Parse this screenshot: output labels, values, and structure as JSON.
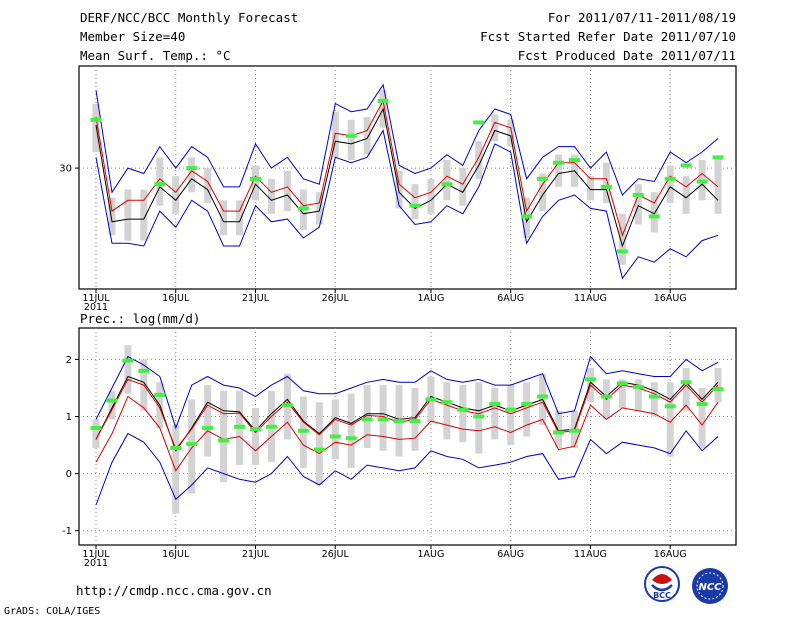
{
  "header": {
    "title": "DERF/NCC/BCC Monthly Forecast",
    "member": "Member Size=40",
    "variable": "Mean Surf. Temp.: °C",
    "period": "For 2011/07/11-2011/08/19",
    "started": "Fcst Started Refer Date 2011/07/10",
    "produced": "Fcst Produced Date 2011/07/11"
  },
  "lower_label": "Prec.: log(mm/d)",
  "footer": {
    "url": "http://cmdp.ncc.cma.gov.cn",
    "credit": "GrADS: COLA/IGES",
    "logo_bcc": "BCC",
    "logo_ncc": "NCC"
  },
  "colors": {
    "ensemble_mean": "#000000",
    "median": "#dd0000",
    "envelope": "#0000cc",
    "spread_bar": "#d3d3d3",
    "observation": "#44ee44",
    "grid": "#888888"
  },
  "chart_data": [
    {
      "type": "line",
      "title": "Mean Surf. Temp.: °C",
      "x_ticks": [
        "11JUL",
        "16JUL",
        "21JUL",
        "26JUL",
        "1AUG",
        "6AUG",
        "11AUG",
        "16AUG"
      ],
      "x_tick_days": [
        0,
        5,
        10,
        15,
        21,
        26,
        31,
        36
      ],
      "x_sublabel": "2011",
      "y_ticks": [
        30
      ],
      "ylim": [
        25.5,
        33.8
      ],
      "days": [
        0,
        1,
        2,
        3,
        4,
        5,
        6,
        7,
        8,
        9,
        10,
        11,
        12,
        13,
        14,
        15,
        16,
        17,
        18,
        19,
        20,
        21,
        22,
        23,
        24,
        25,
        26,
        27,
        28,
        29,
        30,
        31,
        32,
        33,
        34,
        35,
        36,
        37,
        38,
        39
      ],
      "series": [
        {
          "name": "ensemble mean",
          "values": [
            31.6,
            28.0,
            28.1,
            28.1,
            29.3,
            28.8,
            29.6,
            29.2,
            28.0,
            28.0,
            29.4,
            28.8,
            29.0,
            28.3,
            28.4,
            31.0,
            30.9,
            31.1,
            32.2,
            29.1,
            28.5,
            28.8,
            29.4,
            29.1,
            30.1,
            31.4,
            31.2,
            28.0,
            29.0,
            29.8,
            29.9,
            29.2,
            29.2,
            27.1,
            28.6,
            28.3,
            29.3,
            28.9,
            29.4,
            28.8
          ]
        },
        {
          "name": "median",
          "values": [
            31.9,
            28.4,
            28.8,
            28.8,
            29.6,
            29.1,
            29.9,
            29.5,
            28.4,
            28.4,
            29.7,
            29.1,
            29.3,
            28.6,
            28.7,
            31.3,
            31.2,
            31.4,
            32.5,
            29.4,
            28.9,
            29.1,
            29.7,
            29.4,
            30.4,
            31.7,
            31.5,
            28.4,
            29.4,
            30.2,
            30.2,
            29.6,
            29.6,
            27.5,
            29.0,
            28.7,
            29.7,
            29.3,
            29.8,
            29.3
          ]
        },
        {
          "name": "upper envelope",
          "values": [
            32.9,
            29.1,
            30.0,
            29.8,
            30.8,
            30.0,
            30.8,
            30.4,
            29.3,
            29.3,
            30.9,
            30.0,
            30.4,
            29.6,
            29.4,
            32.4,
            32.1,
            32.2,
            33.1,
            30.1,
            29.8,
            30.0,
            30.5,
            30.1,
            31.4,
            32.2,
            32.0,
            29.6,
            30.4,
            30.8,
            30.8,
            30.0,
            30.6,
            29.0,
            29.6,
            29.5,
            30.6,
            30.2,
            30.6,
            31.1
          ]
        },
        {
          "name": "lower envelope",
          "values": [
            30.4,
            27.2,
            27.2,
            27.1,
            28.4,
            27.8,
            28.8,
            28.4,
            27.1,
            27.1,
            28.6,
            28.0,
            28.1,
            27.4,
            27.8,
            30.4,
            30.2,
            30.4,
            31.4,
            28.6,
            27.9,
            28.0,
            28.6,
            28.3,
            29.3,
            30.9,
            30.6,
            27.2,
            28.2,
            28.8,
            29.0,
            28.5,
            28.4,
            25.9,
            26.7,
            26.5,
            27.0,
            26.7,
            27.3,
            27.5
          ]
        }
      ],
      "spread_bars": {
        "low": [
          30.6,
          27.5,
          27.3,
          27.3,
          28.6,
          28.3,
          29.1,
          28.7,
          27.5,
          27.5,
          28.8,
          28.3,
          28.4,
          27.7,
          27.9,
          30.4,
          30.3,
          30.5,
          31.5,
          28.5,
          28.1,
          28.3,
          28.8,
          28.6,
          29.6,
          31.0,
          30.8,
          27.4,
          28.4,
          29.3,
          29.3,
          28.8,
          28.7,
          26.4,
          27.9,
          27.6,
          28.7,
          28.3,
          28.8,
          28.3
        ],
        "high": [
          32.4,
          28.9,
          29.2,
          29.2,
          30.4,
          29.7,
          30.4,
          30.0,
          28.8,
          28.8,
          30.1,
          29.6,
          29.9,
          29.2,
          29.1,
          32.1,
          31.8,
          31.9,
          32.9,
          29.9,
          29.4,
          29.6,
          30.3,
          30.0,
          31.0,
          32.0,
          31.8,
          28.9,
          29.8,
          30.5,
          30.5,
          29.7,
          30.2,
          28.3,
          29.4,
          29.1,
          30.1,
          29.7,
          30.3,
          30.4
        ]
      },
      "observations": [
        {
          "day": 0,
          "value": 31.8
        },
        {
          "day": 4,
          "value": 29.4
        },
        {
          "day": 6,
          "value": 30.0
        },
        {
          "day": 10,
          "value": 29.6
        },
        {
          "day": 13,
          "value": 28.5
        },
        {
          "day": 16,
          "value": 31.2
        },
        {
          "day": 18,
          "value": 32.5
        },
        {
          "day": 20,
          "value": 28.6
        },
        {
          "day": 22,
          "value": 29.4
        },
        {
          "day": 24,
          "value": 31.7
        },
        {
          "day": 27,
          "value": 28.2
        },
        {
          "day": 28,
          "value": 29.6
        },
        {
          "day": 29,
          "value": 30.2
        },
        {
          "day": 30,
          "value": 30.3
        },
        {
          "day": 32,
          "value": 29.3
        },
        {
          "day": 33,
          "value": 26.9
        },
        {
          "day": 34,
          "value": 29.0
        },
        {
          "day": 35,
          "value": 28.2
        },
        {
          "day": 36,
          "value": 29.6
        },
        {
          "day": 37,
          "value": 30.1
        },
        {
          "day": 38,
          "value": 29.5
        },
        {
          "day": 39,
          "value": 30.4
        }
      ]
    },
    {
      "type": "line",
      "title": "Prec.: log(mm/d)",
      "x_ticks": [
        "11JUL",
        "16JUL",
        "21JUL",
        "26JUL",
        "1AUG",
        "6AUG",
        "11AUG",
        "16AUG"
      ],
      "x_tick_days": [
        0,
        5,
        10,
        15,
        21,
        26,
        31,
        36
      ],
      "x_sublabel": "2011",
      "y_ticks": [
        -1,
        0,
        1,
        2
      ],
      "ylim": [
        -1.25,
        2.55
      ],
      "days": [
        0,
        1,
        2,
        3,
        4,
        5,
        6,
        7,
        8,
        9,
        10,
        11,
        12,
        13,
        14,
        15,
        16,
        17,
        18,
        19,
        20,
        21,
        22,
        23,
        24,
        25,
        26,
        27,
        28,
        29,
        30,
        31,
        32,
        33,
        34,
        35,
        36,
        37,
        38,
        39
      ],
      "series": [
        {
          "name": "ensemble mean",
          "values": [
            0.6,
            1.15,
            1.7,
            1.6,
            1.2,
            0.4,
            0.8,
            1.25,
            1.1,
            1.08,
            0.75,
            1.05,
            1.3,
            0.92,
            0.7,
            0.98,
            0.88,
            1.05,
            1.05,
            0.95,
            0.98,
            1.35,
            1.25,
            1.15,
            1.1,
            1.2,
            1.1,
            1.2,
            1.3,
            0.75,
            0.78,
            1.6,
            1.35,
            1.6,
            1.55,
            1.45,
            1.3,
            1.6,
            1.3,
            1.6
          ]
        },
        {
          "name": "median",
          "values": [
            0.6,
            1.12,
            1.65,
            1.55,
            1.15,
            0.43,
            0.78,
            1.2,
            1.05,
            1.06,
            0.72,
            1.0,
            1.25,
            0.9,
            0.68,
            0.95,
            0.85,
            1.02,
            1.0,
            0.9,
            0.95,
            1.3,
            1.2,
            1.1,
            1.05,
            1.15,
            1.05,
            1.15,
            1.25,
            0.72,
            0.75,
            1.55,
            1.3,
            1.55,
            1.5,
            1.4,
            1.25,
            1.55,
            1.25,
            1.55
          ]
        },
        {
          "name": "lower median",
          "values": [
            0.2,
            0.7,
            1.35,
            1.15,
            0.8,
            0.05,
            0.45,
            0.75,
            0.6,
            0.65,
            0.4,
            0.65,
            0.9,
            0.5,
            0.35,
            0.55,
            0.5,
            0.68,
            0.65,
            0.6,
            0.62,
            0.92,
            0.85,
            0.78,
            0.75,
            0.82,
            0.72,
            0.85,
            0.95,
            0.42,
            0.48,
            1.2,
            0.95,
            1.15,
            1.1,
            1.05,
            0.9,
            1.2,
            0.85,
            1.25
          ]
        },
        {
          "name": "upper envelope",
          "values": [
            0.95,
            1.5,
            2.05,
            1.9,
            1.7,
            0.8,
            1.55,
            1.7,
            1.55,
            1.5,
            1.35,
            1.55,
            1.7,
            1.45,
            1.4,
            1.4,
            1.5,
            1.6,
            1.65,
            1.6,
            1.6,
            1.8,
            1.65,
            1.6,
            1.65,
            1.55,
            1.55,
            1.65,
            1.75,
            1.05,
            1.1,
            2.05,
            1.75,
            1.8,
            1.75,
            1.7,
            1.7,
            2.0,
            1.8,
            1.95
          ]
        },
        {
          "name": "lower envelope",
          "values": [
            -0.55,
            0.2,
            0.7,
            0.55,
            0.2,
            -0.45,
            -0.2,
            0.1,
            0.0,
            -0.1,
            -0.15,
            0.0,
            0.3,
            -0.05,
            -0.2,
            0.05,
            -0.1,
            0.15,
            0.1,
            0.05,
            0.1,
            0.4,
            0.3,
            0.25,
            0.1,
            0.15,
            0.2,
            0.3,
            0.35,
            -0.1,
            -0.05,
            0.6,
            0.35,
            0.55,
            0.5,
            0.45,
            0.35,
            0.75,
            0.4,
            0.65
          ]
        }
      ],
      "spread_bars": {
        "low": [
          0.45,
          0.95,
          1.4,
          1.1,
          0.8,
          -0.7,
          -0.35,
          0.3,
          -0.15,
          0.15,
          0.15,
          0.2,
          0.6,
          0.1,
          -0.2,
          0.25,
          0.1,
          0.45,
          0.4,
          0.3,
          0.4,
          0.9,
          0.6,
          0.55,
          0.35,
          0.6,
          0.5,
          0.65,
          0.85,
          0.45,
          0.45,
          1.25,
          0.95,
          1.15,
          1.1,
          1.0,
          0.3,
          1.1,
          0.45,
          1.25
        ],
        "high": [
          0.95,
          1.45,
          2.25,
          2.0,
          1.6,
          0.85,
          1.3,
          1.55,
          1.45,
          1.45,
          1.15,
          1.45,
          1.75,
          1.35,
          1.25,
          1.3,
          1.4,
          1.55,
          1.55,
          1.55,
          1.5,
          1.7,
          1.6,
          1.55,
          1.6,
          1.5,
          1.55,
          1.6,
          1.75,
          1.1,
          1.1,
          1.85,
          1.65,
          1.65,
          1.65,
          1.6,
          1.6,
          1.85,
          1.5,
          1.85
        ]
      },
      "observations": [
        {
          "day": 0,
          "value": 0.8
        },
        {
          "day": 1,
          "value": 1.28
        },
        {
          "day": 2,
          "value": 1.98
        },
        {
          "day": 3,
          "value": 1.8
        },
        {
          "day": 4,
          "value": 1.38
        },
        {
          "day": 5,
          "value": 0.45
        },
        {
          "day": 6,
          "value": 0.52
        },
        {
          "day": 7,
          "value": 0.8
        },
        {
          "day": 8,
          "value": 0.58
        },
        {
          "day": 9,
          "value": 0.82
        },
        {
          "day": 10,
          "value": 0.78
        },
        {
          "day": 11,
          "value": 0.82
        },
        {
          "day": 12,
          "value": 1.2
        },
        {
          "day": 13,
          "value": 0.75
        },
        {
          "day": 14,
          "value": 0.42
        },
        {
          "day": 15,
          "value": 0.65
        },
        {
          "day": 16,
          "value": 0.62
        },
        {
          "day": 17,
          "value": 0.95
        },
        {
          "day": 18,
          "value": 0.95
        },
        {
          "day": 19,
          "value": 0.92
        },
        {
          "day": 20,
          "value": 0.92
        },
        {
          "day": 21,
          "value": 1.3
        },
        {
          "day": 22,
          "value": 1.25
        },
        {
          "day": 23,
          "value": 1.12
        },
        {
          "day": 24,
          "value": 1.0
        },
        {
          "day": 25,
          "value": 1.22
        },
        {
          "day": 26,
          "value": 1.12
        },
        {
          "day": 27,
          "value": 1.22
        },
        {
          "day": 28,
          "value": 1.35
        },
        {
          "day": 29,
          "value": 0.72
        },
        {
          "day": 30,
          "value": 0.75
        },
        {
          "day": 31,
          "value": 1.65
        },
        {
          "day": 32,
          "value": 1.35
        },
        {
          "day": 33,
          "value": 1.58
        },
        {
          "day": 34,
          "value": 1.52
        },
        {
          "day": 35,
          "value": 1.35
        },
        {
          "day": 36,
          "value": 1.18
        },
        {
          "day": 37,
          "value": 1.6
        },
        {
          "day": 38,
          "value": 1.22
        },
        {
          "day": 39,
          "value": 1.48
        }
      ]
    }
  ]
}
